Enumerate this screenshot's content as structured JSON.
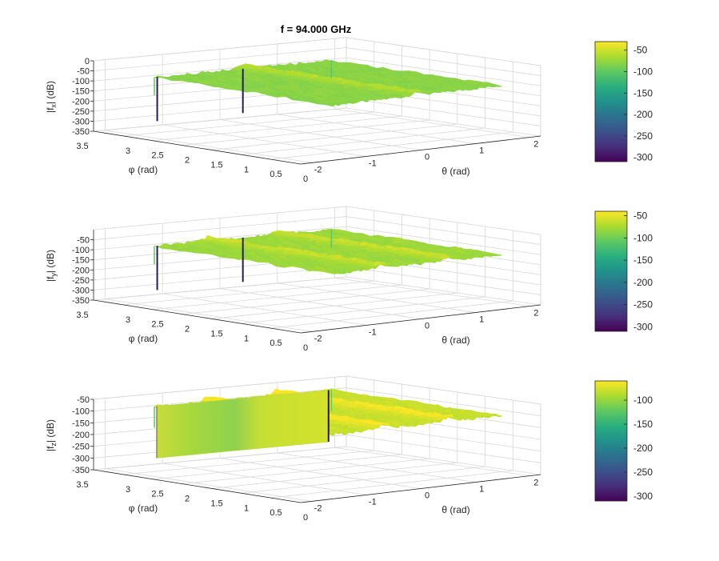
{
  "figure": {
    "title": "f = 94.000 GHz"
  },
  "chart_data": [
    {
      "type": "surface",
      "zlabel_main": "|f",
      "zlabel_sub": "x",
      "zlabel_tail": "| (dB)",
      "xlabel": "θ (rad)",
      "ylabel": "φ (rad)",
      "x_ticks": [
        "-2",
        "-1",
        "0",
        "1",
        "2"
      ],
      "y_ticks": [
        "0",
        "0.5",
        "1",
        "1.5",
        "2",
        "2.5",
        "3",
        "3.5"
      ],
      "z_ticks": [
        "0",
        "-50",
        "-100",
        "-150",
        "-200",
        "-250",
        "-300",
        "-350"
      ],
      "xlim": [
        -2.2,
        2.2
      ],
      "ylim": [
        0,
        3.5
      ],
      "zlim": [
        -350,
        0
      ],
      "surface_level_db": -80,
      "ridges_theta": [
        0
      ],
      "dips": [
        {
          "theta": -1.5,
          "phi": 3.1,
          "db": -300
        },
        {
          "theta": 0,
          "phi": 3.1,
          "db": -300
        }
      ],
      "colorbar": {
        "ticks": [
          "-50",
          "-100",
          "-150",
          "-200",
          "-250",
          "-300"
        ],
        "range": [
          -310,
          -30
        ]
      }
    },
    {
      "type": "surface",
      "zlabel_main": "|f",
      "zlabel_sub": "y",
      "zlabel_tail": "| (dB)",
      "xlabel": "θ (rad)",
      "ylabel": "φ (rad)",
      "x_ticks": [
        "-2",
        "-1",
        "0",
        "1",
        "2"
      ],
      "y_ticks": [
        "0",
        "0.5",
        "1",
        "1.5",
        "2",
        "2.5",
        "3",
        "3.5"
      ],
      "z_ticks": [
        "-50",
        "-100",
        "-150",
        "-200",
        "-250",
        "-300",
        "-350"
      ],
      "xlim": [
        -2.2,
        2.2
      ],
      "ylim": [
        0,
        3.5
      ],
      "zlim": [
        -350,
        0
      ],
      "surface_level_db": -80,
      "ridges_theta": [
        -0.6,
        0.6
      ],
      "dips": [
        {
          "theta": -1.5,
          "phi": 3.1,
          "db": -300
        },
        {
          "theta": 0,
          "phi": 3.1,
          "db": -300
        }
      ],
      "colorbar": {
        "ticks": [
          "-50",
          "-100",
          "-150",
          "-200",
          "-250",
          "-300"
        ],
        "range": [
          -310,
          -40
        ]
      }
    },
    {
      "type": "surface",
      "zlabel_main": "|f",
      "zlabel_sub": "z",
      "zlabel_tail": "| (dB)",
      "xlabel": "θ (rad)",
      "ylabel": "φ (rad)",
      "x_ticks": [
        "-2",
        "-1",
        "0",
        "1",
        "2"
      ],
      "y_ticks": [
        "0",
        "0.5",
        "1",
        "1.5",
        "2",
        "2.5",
        "3",
        "3.5"
      ],
      "z_ticks": [
        "-50",
        "-100",
        "-150",
        "-200",
        "-250",
        "-300",
        "-350"
      ],
      "xlim": [
        -2.2,
        2.2
      ],
      "ylim": [
        0,
        3.5
      ],
      "zlim": [
        -350,
        -50
      ],
      "surface_level_db": -80,
      "ridges_theta": [
        -0.6,
        0.6
      ],
      "dips": [
        {
          "theta": -1.5,
          "phi": 3.1,
          "db": -300
        },
        {
          "theta": 0,
          "phi": 3.1,
          "db": -300
        }
      ],
      "curtain": {
        "theta_from": -1.5,
        "theta_to": 1.5,
        "phi": 3.1,
        "db_bottom": -300
      },
      "colorbar": {
        "ticks": [
          "-100",
          "-150",
          "-200",
          "-250",
          "-300"
        ],
        "range": [
          -310,
          -60
        ]
      }
    }
  ]
}
